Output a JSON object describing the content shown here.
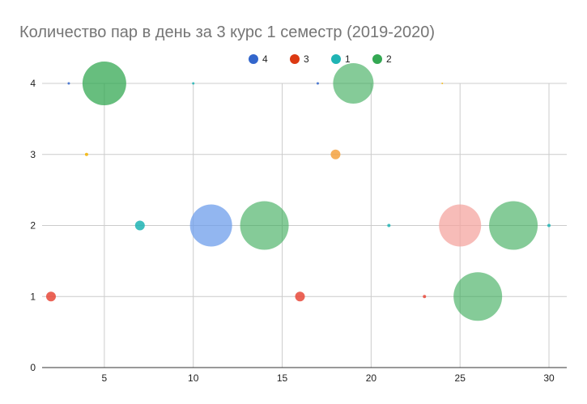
{
  "chart_data": {
    "type": "bubble",
    "title": "Количество пар в день за 3 курс 1 семестр (2019-2020)",
    "xlabel": "",
    "ylabel": "",
    "xlim": [
      1.5,
      31
    ],
    "ylim": [
      0,
      4
    ],
    "x_ticks": [
      5,
      10,
      15,
      20,
      25,
      30
    ],
    "y_ticks": [
      0,
      1,
      2,
      3,
      4
    ],
    "grid": true,
    "legend_position": "top",
    "legend": [
      {
        "name": "4",
        "color": "#3366cc"
      },
      {
        "name": "3",
        "color": "#dc3912"
      },
      {
        "name": "1",
        "color": "#1fb4b4"
      },
      {
        "name": "2",
        "color": "#34a853"
      }
    ],
    "points": [
      {
        "x": 3,
        "y": 4,
        "r": 1.5,
        "color": "#3366cc"
      },
      {
        "x": 5,
        "y": 4,
        "r": 27,
        "color": "#34a853",
        "opacity": 0.75
      },
      {
        "x": 10,
        "y": 4,
        "r": 1.5,
        "color": "#1fb4b4"
      },
      {
        "x": 17,
        "y": 4,
        "r": 1.5,
        "color": "#3366cc"
      },
      {
        "x": 19,
        "y": 4,
        "r": 25,
        "color": "#34a853",
        "opacity": 0.6
      },
      {
        "x": 24,
        "y": 4,
        "r": 1,
        "color": "#f4b400"
      },
      {
        "x": 4,
        "y": 3,
        "r": 2,
        "color": "#f4b400"
      },
      {
        "x": 18,
        "y": 3,
        "r": 6,
        "color": "#f4a240"
      },
      {
        "x": 7,
        "y": 2,
        "r": 6,
        "color": "#1fb4b4"
      },
      {
        "x": 11,
        "y": 2,
        "r": 26,
        "color": "#6d9eeb",
        "opacity": 0.75
      },
      {
        "x": 14,
        "y": 2,
        "r": 30,
        "color": "#34a853",
        "opacity": 0.6
      },
      {
        "x": 21,
        "y": 2,
        "r": 2,
        "color": "#1fb4b4"
      },
      {
        "x": 25,
        "y": 2,
        "r": 26,
        "color": "#f4a6a0",
        "opacity": 0.75
      },
      {
        "x": 28,
        "y": 2,
        "r": 30,
        "color": "#34a853",
        "opacity": 0.6
      },
      {
        "x": 30,
        "y": 2,
        "r": 2,
        "color": "#1fb4b4"
      },
      {
        "x": 2,
        "y": 1,
        "r": 6,
        "color": "#e8493a"
      },
      {
        "x": 16,
        "y": 1,
        "r": 6,
        "color": "#e8493a"
      },
      {
        "x": 23,
        "y": 1,
        "r": 2,
        "color": "#e8493a"
      },
      {
        "x": 26,
        "y": 1,
        "r": 30,
        "color": "#34a853",
        "opacity": 0.6
      }
    ]
  }
}
